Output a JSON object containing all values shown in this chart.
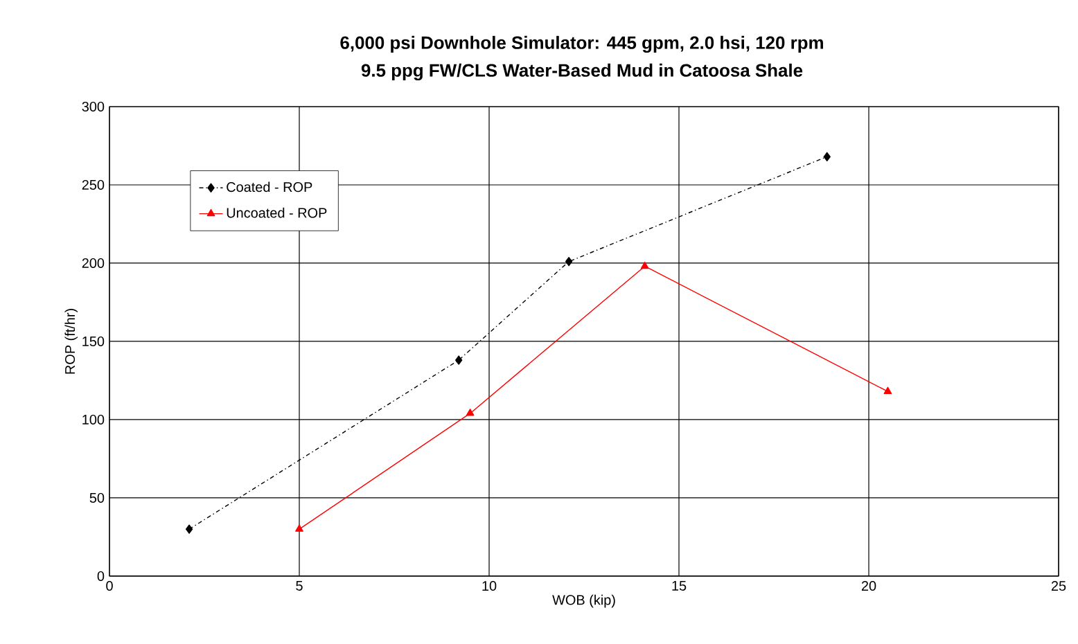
{
  "chart_data": {
    "type": "line",
    "title": "6,000 psi Downhole Simulator: 445 gpm, 2.0 hsi, 120 rpm",
    "subtitle": "9.5 ppg FW/CLS Water-Based Mud in Catoosa Shale",
    "xlabel": "WOB (kip)",
    "ylabel": "ROP (ft/hr)",
    "xlim": [
      0,
      25
    ],
    "xticks": [
      0,
      5,
      10,
      15,
      20,
      25
    ],
    "ylim": [
      0,
      300
    ],
    "yticks": [
      0,
      50,
      100,
      150,
      200,
      250,
      300
    ],
    "grid": true,
    "legend": "top left",
    "series": [
      {
        "name": "Coated - ROP",
        "color": "#000000",
        "marker": "diamond",
        "line_style": "dashdot",
        "x": [
          2.1,
          9.2,
          12.1,
          18.9
        ],
        "values": [
          30,
          138,
          201,
          268
        ]
      },
      {
        "name": "Uncoated - ROP",
        "color": "#ff0000",
        "marker": "triangle",
        "line_style": "solid",
        "x": [
          5.0,
          9.5,
          14.1,
          20.5
        ],
        "values": [
          30,
          104,
          198,
          118
        ]
      }
    ]
  }
}
